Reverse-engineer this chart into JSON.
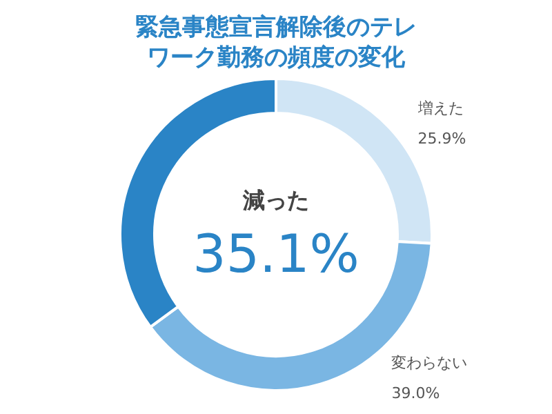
{
  "chart_data": {
    "type": "donut",
    "title": "緊急事態宣言解除後のテレワーク勤務の頻度の変化",
    "categories": [
      "増えた",
      "変わらない",
      "減った"
    ],
    "values": [
      25.9,
      39.0,
      35.1
    ],
    "value_labels": [
      "25.9%",
      "39.0%",
      "35.1%"
    ],
    "colors": [
      "#d0e5f5",
      "#7ab6e3",
      "#2a84c6"
    ],
    "legend": false
  }
}
